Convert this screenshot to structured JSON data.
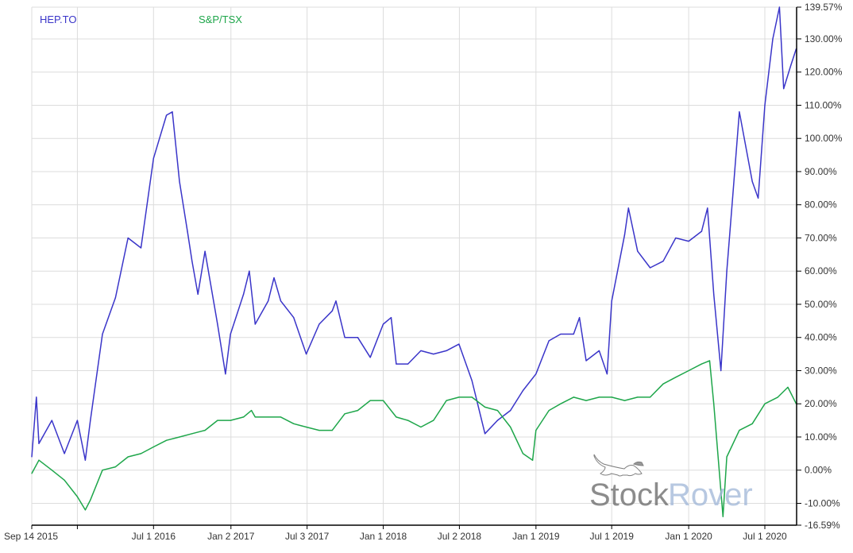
{
  "chart_data": {
    "type": "line",
    "title": "",
    "xlabel": "",
    "ylabel": "",
    "ylim": [
      -16.59,
      139.57
    ],
    "xlim": [
      "2015-09-14",
      "2020-09-14"
    ],
    "grid": true,
    "legend_placement": "top-left",
    "y_ticks": [
      "139.57%",
      "130.00%",
      "120.00%",
      "110.00%",
      "100.00%",
      "90.00%",
      "80.00%",
      "70.00%",
      "60.00%",
      "50.00%",
      "40.00%",
      "30.00%",
      "20.00%",
      "10.00%",
      "0.00%",
      "-10.00%",
      "-16.59%"
    ],
    "x_ticks": [
      {
        "date": "2015-09-14",
        "label": "Sep 14 2015"
      },
      {
        "date": "2016-01-01",
        "label": ""
      },
      {
        "date": "2016-07-01",
        "label": "Jul 1 2016"
      },
      {
        "date": "2017-01-02",
        "label": "Jan 2 2017"
      },
      {
        "date": "2017-07-03",
        "label": "Jul 3 2017"
      },
      {
        "date": "2018-01-01",
        "label": "Jan 1 2018"
      },
      {
        "date": "2018-07-02",
        "label": "Jul 2 2018"
      },
      {
        "date": "2019-01-01",
        "label": "Jan 1 2019"
      },
      {
        "date": "2019-07-01",
        "label": "Jul 1 2019"
      },
      {
        "date": "2020-01-01",
        "label": "Jan 1 2020"
      },
      {
        "date": "2020-07-01",
        "label": "Jul 1 2020"
      }
    ],
    "series": [
      {
        "name": "HEP.TO",
        "color": "#3a35c9",
        "points": [
          [
            "2015-09-14",
            4
          ],
          [
            "2015-09-25",
            22
          ],
          [
            "2015-10-01",
            8
          ],
          [
            "2015-11-01",
            15
          ],
          [
            "2015-12-01",
            5
          ],
          [
            "2016-01-01",
            15
          ],
          [
            "2016-01-20",
            3
          ],
          [
            "2016-02-01",
            15
          ],
          [
            "2016-03-01",
            41
          ],
          [
            "2016-04-01",
            52
          ],
          [
            "2016-05-01",
            70
          ],
          [
            "2016-06-01",
            67
          ],
          [
            "2016-07-01",
            94
          ],
          [
            "2016-08-01",
            107
          ],
          [
            "2016-08-15",
            108
          ],
          [
            "2016-09-01",
            87
          ],
          [
            "2016-09-20",
            72
          ],
          [
            "2016-10-01",
            63
          ],
          [
            "2016-10-15",
            53
          ],
          [
            "2016-11-01",
            66
          ],
          [
            "2016-12-01",
            44
          ],
          [
            "2016-12-20",
            29
          ],
          [
            "2017-01-01",
            41
          ],
          [
            "2017-02-01",
            53
          ],
          [
            "2017-02-15",
            60
          ],
          [
            "2017-03-01",
            44
          ],
          [
            "2017-04-01",
            51
          ],
          [
            "2017-04-15",
            58
          ],
          [
            "2017-05-01",
            51
          ],
          [
            "2017-06-01",
            46
          ],
          [
            "2017-07-01",
            35
          ],
          [
            "2017-08-01",
            44
          ],
          [
            "2017-09-01",
            48
          ],
          [
            "2017-09-10",
            51
          ],
          [
            "2017-10-01",
            40
          ],
          [
            "2017-11-01",
            40
          ],
          [
            "2017-12-01",
            34
          ],
          [
            "2018-01-01",
            44
          ],
          [
            "2018-01-20",
            46
          ],
          [
            "2018-02-01",
            32
          ],
          [
            "2018-03-01",
            32
          ],
          [
            "2018-04-01",
            36
          ],
          [
            "2018-05-01",
            35
          ],
          [
            "2018-06-01",
            36
          ],
          [
            "2018-07-01",
            38
          ],
          [
            "2018-08-01",
            27
          ],
          [
            "2018-09-01",
            11
          ],
          [
            "2018-10-01",
            15
          ],
          [
            "2018-11-01",
            18
          ],
          [
            "2018-12-01",
            24
          ],
          [
            "2019-01-01",
            29
          ],
          [
            "2019-02-01",
            39
          ],
          [
            "2019-03-01",
            41
          ],
          [
            "2019-04-01",
            41
          ],
          [
            "2019-04-15",
            46
          ],
          [
            "2019-05-01",
            33
          ],
          [
            "2019-06-01",
            36
          ],
          [
            "2019-06-20",
            29
          ],
          [
            "2019-07-01",
            51
          ],
          [
            "2019-08-01",
            71
          ],
          [
            "2019-08-10",
            79
          ],
          [
            "2019-09-01",
            66
          ],
          [
            "2019-10-01",
            61
          ],
          [
            "2019-11-01",
            63
          ],
          [
            "2019-12-01",
            70
          ],
          [
            "2020-01-01",
            69
          ],
          [
            "2020-02-01",
            72
          ],
          [
            "2020-02-15",
            79
          ],
          [
            "2020-03-01",
            53
          ],
          [
            "2020-03-18",
            30
          ],
          [
            "2020-04-01",
            60
          ],
          [
            "2020-04-15",
            82
          ],
          [
            "2020-05-01",
            108
          ],
          [
            "2020-06-01",
            87
          ],
          [
            "2020-06-15",
            82
          ],
          [
            "2020-07-01",
            110
          ],
          [
            "2020-07-20",
            130
          ],
          [
            "2020-08-05",
            139.57
          ],
          [
            "2020-08-15",
            115
          ],
          [
            "2020-09-01",
            122
          ],
          [
            "2020-09-14",
            127
          ]
        ]
      },
      {
        "name": "S&P/TSX",
        "color": "#1ea64a",
        "points": [
          [
            "2015-09-14",
            -1
          ],
          [
            "2015-10-01",
            3
          ],
          [
            "2015-11-01",
            0
          ],
          [
            "2015-12-01",
            -3
          ],
          [
            "2016-01-01",
            -8
          ],
          [
            "2016-01-20",
            -12
          ],
          [
            "2016-02-01",
            -9
          ],
          [
            "2016-03-01",
            0
          ],
          [
            "2016-04-01",
            1
          ],
          [
            "2016-05-01",
            4
          ],
          [
            "2016-06-01",
            5
          ],
          [
            "2016-07-01",
            7
          ],
          [
            "2016-08-01",
            9
          ],
          [
            "2016-09-01",
            10
          ],
          [
            "2016-10-01",
            11
          ],
          [
            "2016-11-01",
            12
          ],
          [
            "2016-12-01",
            15
          ],
          [
            "2017-01-01",
            15
          ],
          [
            "2017-02-01",
            16
          ],
          [
            "2017-02-20",
            18
          ],
          [
            "2017-03-01",
            16
          ],
          [
            "2017-04-01",
            16
          ],
          [
            "2017-05-01",
            16
          ],
          [
            "2017-06-01",
            14
          ],
          [
            "2017-07-01",
            13
          ],
          [
            "2017-08-01",
            12
          ],
          [
            "2017-09-01",
            12
          ],
          [
            "2017-10-01",
            17
          ],
          [
            "2017-11-01",
            18
          ],
          [
            "2017-12-01",
            21
          ],
          [
            "2018-01-01",
            21
          ],
          [
            "2018-02-01",
            16
          ],
          [
            "2018-03-01",
            15
          ],
          [
            "2018-04-01",
            13
          ],
          [
            "2018-05-01",
            15
          ],
          [
            "2018-06-01",
            21
          ],
          [
            "2018-07-01",
            22
          ],
          [
            "2018-08-01",
            22
          ],
          [
            "2018-09-01",
            19
          ],
          [
            "2018-10-01",
            18
          ],
          [
            "2018-11-01",
            13
          ],
          [
            "2018-12-01",
            5
          ],
          [
            "2018-12-24",
            3
          ],
          [
            "2019-01-01",
            12
          ],
          [
            "2019-02-01",
            18
          ],
          [
            "2019-03-01",
            20
          ],
          [
            "2019-04-01",
            22
          ],
          [
            "2019-05-01",
            21
          ],
          [
            "2019-06-01",
            22
          ],
          [
            "2019-07-01",
            22
          ],
          [
            "2019-08-01",
            21
          ],
          [
            "2019-09-01",
            22
          ],
          [
            "2019-10-01",
            22
          ],
          [
            "2019-11-01",
            26
          ],
          [
            "2019-12-01",
            28
          ],
          [
            "2020-01-01",
            30
          ],
          [
            "2020-02-01",
            32
          ],
          [
            "2020-02-20",
            33
          ],
          [
            "2020-03-01",
            20
          ],
          [
            "2020-03-23",
            -14
          ],
          [
            "2020-04-01",
            4
          ],
          [
            "2020-05-01",
            12
          ],
          [
            "2020-06-01",
            14
          ],
          [
            "2020-07-01",
            20
          ],
          [
            "2020-08-01",
            22
          ],
          [
            "2020-08-25",
            25
          ],
          [
            "2020-09-14",
            20
          ]
        ]
      }
    ]
  },
  "logo": {
    "text_dark": "Stock",
    "text_light": "Rover"
  }
}
